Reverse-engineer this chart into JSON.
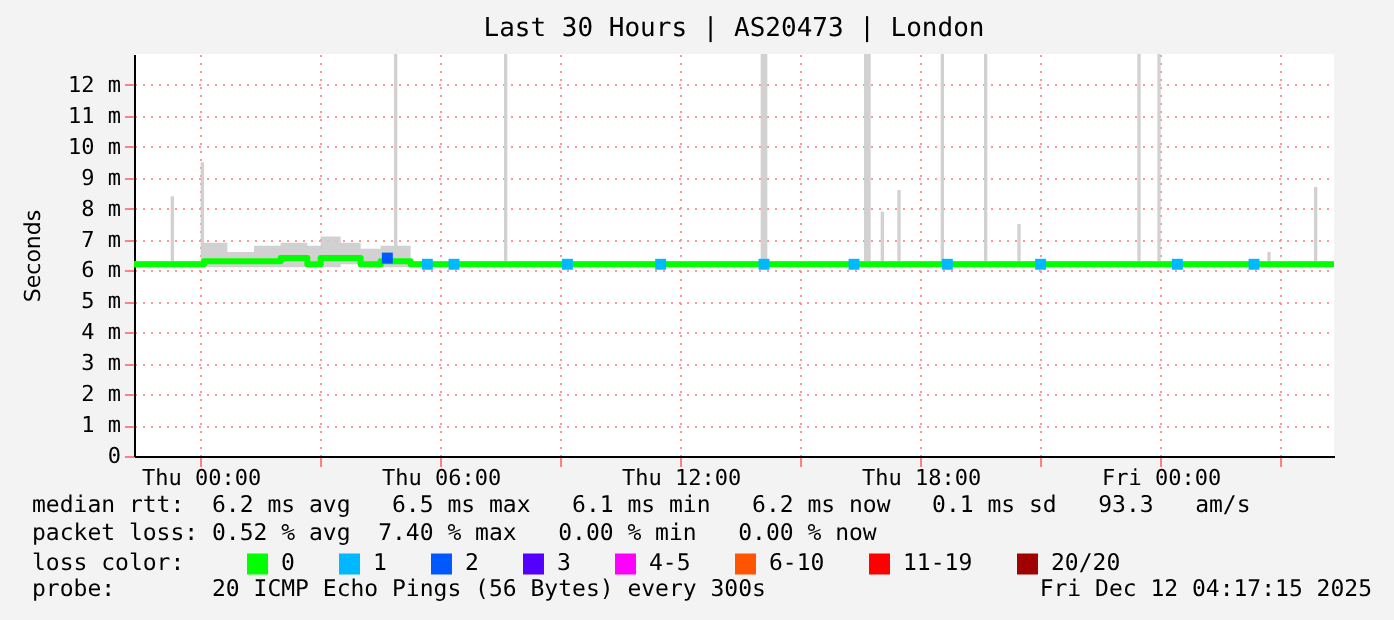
{
  "chart_data": {
    "type": "line",
    "title": "Last 30 Hours | AS20473 | London",
    "ylabel": "Seconds",
    "legend_title": "loss color:",
    "annotations": [
      "median rtt:  6.2 ms avg   6.5 ms max   6.1 ms min   6.2 ms now   0.1 ms sd   93.3   am/s",
      "packet loss: 0.52 % avg  7.40 % max   0.00 % min   0.00 % now",
      "probe:       20 ICMP Echo Pings (56 Bytes) every 300s",
      "Fri Dec 12 04:17:15 2025"
    ],
    "xlim": [
      "2025-12-10T22:20",
      "2025-12-12T04:20"
    ],
    "xticks": [
      {
        "value": "2025-12-11T00:00",
        "label": "Thu 00:00"
      },
      {
        "value": "2025-12-11T03:00",
        "label": null
      },
      {
        "value": "2025-12-11T06:00",
        "label": "Thu 06:00"
      },
      {
        "value": "2025-12-11T09:00",
        "label": null
      },
      {
        "value": "2025-12-11T12:00",
        "label": "Thu 12:00"
      },
      {
        "value": "2025-12-11T15:00",
        "label": null
      },
      {
        "value": "2025-12-11T18:00",
        "label": "Thu 18:00"
      },
      {
        "value": "2025-12-11T21:00",
        "label": null
      },
      {
        "value": "2025-12-12T00:00",
        "label": "Fri 00:00"
      },
      {
        "value": "2025-12-12T03:00",
        "label": null
      }
    ],
    "ylim": [
      0,
      13
    ],
    "yticks": [
      0,
      {
        "value": 1,
        "label": "1 m"
      },
      {
        "value": 2,
        "label": "2 m"
      },
      {
        "value": 3,
        "label": "3 m"
      },
      {
        "value": 4,
        "label": "4 m"
      },
      {
        "value": 5,
        "label": "5 m"
      },
      {
        "value": 6,
        "label": "6 m"
      },
      {
        "value": 7,
        "label": "7 m"
      },
      {
        "value": 8,
        "label": "8 m"
      },
      {
        "value": 9,
        "label": "9 m"
      },
      {
        "value": 10,
        "label": "10 m"
      },
      {
        "value": 11,
        "label": "11 m"
      },
      {
        "value": 12,
        "label": "12 m"
      }
    ],
    "grid": true,
    "legend": "bottom",
    "line_style": "solid",
    "series": [
      {
        "name": "0",
        "color": "#00ff00",
        "x": [
          "2025-12-10T22:20",
          "2025-12-10T23:15",
          "2025-12-10T23:20",
          "2025-12-11T00:00",
          "2025-12-11T00:05",
          "2025-12-11T00:40",
          "2025-12-11T01:20",
          "2025-12-11T02:00",
          "2025-12-11T02:40",
          "2025-12-11T03:00",
          "2025-12-11T03:30",
          "2025-12-11T04:00",
          "2025-12-11T04:30",
          "2025-12-11T04:50",
          "2025-12-11T04:55",
          "2025-12-11T05:15",
          "2025-12-11T07:35",
          "2025-12-11T07:40",
          "2025-12-11T14:00",
          "2025-12-11T14:10",
          "2025-12-11T16:35",
          "2025-12-11T16:45",
          "2025-12-11T17:00",
          "2025-12-11T17:05",
          "2025-12-11T17:25",
          "2025-12-11T17:30",
          "2025-12-11T18:30",
          "2025-12-11T18:35",
          "2025-12-11T19:35",
          "2025-12-11T19:40",
          "2025-12-11T20:25",
          "2025-12-11T20:30",
          "2025-12-11T23:25",
          "2025-12-11T23:30",
          "2025-12-11T23:55",
          "2025-12-12T00:00",
          "2025-12-12T02:40",
          "2025-12-12T02:45",
          "2025-12-12T03:50",
          "2025-12-12T03:55",
          "2025-12-12T04:20"
        ],
        "values": [
          6.2,
          6.2,
          6.2,
          6.2,
          6.3,
          6.3,
          6.3,
          6.4,
          6.2,
          6.4,
          6.4,
          6.2,
          6.3,
          6.3,
          6.3,
          6.2,
          6.2,
          6.2,
          6.2,
          6.2,
          6.2,
          6.2,
          6.2,
          6.2,
          6.2,
          6.2,
          6.2,
          6.2,
          6.2,
          6.2,
          6.2,
          6.2,
          6.2,
          6.2,
          6.2,
          6.2,
          6.2,
          6.2,
          6.2,
          6.2,
          6.2
        ],
        "lower": [
          6.1,
          6.1,
          6.1,
          6.1,
          6.1,
          6.1,
          6.1,
          6.1,
          6.1,
          6.1,
          6.2,
          6.1,
          6.1,
          6.1,
          6.1,
          6.1,
          6.1,
          6.1,
          6.1,
          6.1,
          6.1,
          6.1,
          6.1,
          6.1,
          6.1,
          6.1,
          6.1,
          6.1,
          6.1,
          6.1,
          6.1,
          6.1,
          6.1,
          6.1,
          6.1,
          6.1,
          6.1,
          6.1,
          6.1,
          6.1,
          6.1
        ],
        "upper": [
          6.3,
          8.4,
          6.3,
          9.5,
          6.9,
          6.6,
          6.8,
          6.9,
          6.8,
          7.1,
          6.9,
          6.7,
          6.8,
          13,
          6.8,
          6.3,
          13,
          6.3,
          13,
          6.3,
          13,
          6.3,
          7.9,
          6.3,
          8.6,
          6.3,
          13,
          6.3,
          13,
          6.3,
          7.5,
          6.3,
          13,
          6.3,
          13,
          6.3,
          6.6,
          6.3,
          8.7,
          6.3,
          6.3
        ]
      },
      {
        "name": "1",
        "type": "scatter",
        "marker": "square",
        "color": "#00b8ff",
        "x": [
          "2025-12-11T05:40",
          "2025-12-11T06:20",
          "2025-12-11T09:10",
          "2025-12-11T11:30",
          "2025-12-11T14:05",
          "2025-12-11T16:20",
          "2025-12-11T18:40",
          "2025-12-11T21:00",
          "2025-12-12T00:25",
          "2025-12-12T02:20"
        ],
        "values": [
          6.2,
          6.2,
          6.2,
          6.2,
          6.2,
          6.2,
          6.2,
          6.2,
          6.2,
          6.2
        ]
      },
      {
        "name": "2",
        "type": "scatter",
        "marker": "square",
        "color": "#0059ff",
        "x": [
          "2025-12-11T04:40"
        ],
        "values": [
          6.4
        ]
      },
      {
        "name": "3",
        "type": "scatter",
        "marker": "square",
        "color": "#5500ff"
      },
      {
        "name": "4-5",
        "type": "scatter",
        "marker": "square",
        "color": "#ff00ff"
      },
      {
        "name": "6-10",
        "type": "scatter",
        "marker": "square",
        "color": "#ff5500"
      },
      {
        "name": "11-19",
        "type": "scatter",
        "marker": "square",
        "color": "#ff0000"
      },
      {
        "name": "20/20",
        "type": "scatter",
        "marker": "square",
        "color": "#a10000"
      }
    ]
  }
}
